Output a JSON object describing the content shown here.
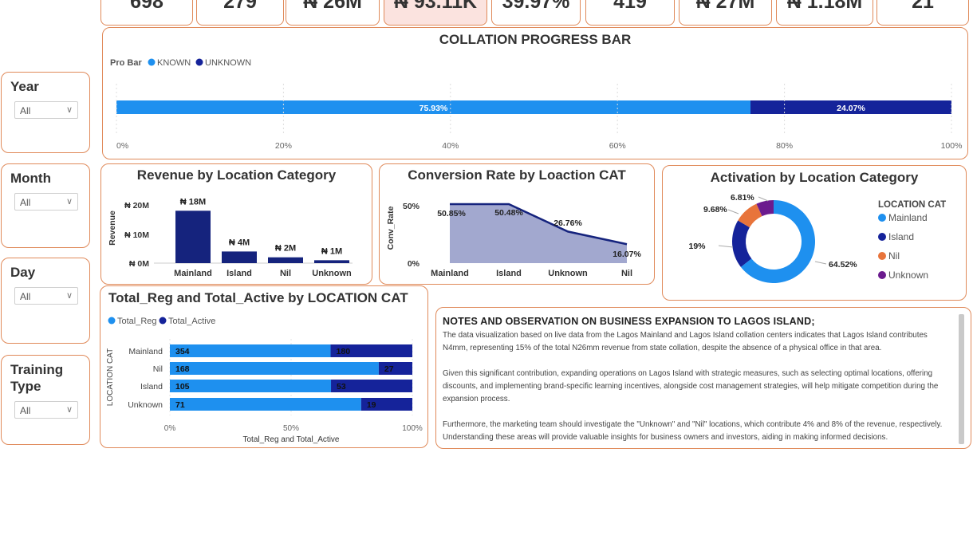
{
  "kpis": [
    "698",
    "279",
    "₦ 26M",
    "₦ 93.11K",
    "39.97%",
    "419",
    "₦ 27M",
    "₦ 1.18M",
    "21"
  ],
  "slicers": [
    {
      "title": "Year",
      "value": "All"
    },
    {
      "title": "Month",
      "value": "All"
    },
    {
      "title": "Day",
      "value": "All"
    },
    {
      "title": "Training Type",
      "value": "All"
    }
  ],
  "colors": {
    "known": "#1e90ef",
    "unknown": "#15239a",
    "nil": "#e8743b",
    "unknown_purple": "#6b1b8e",
    "border": "#e08a5a",
    "area": "#a2a8cf",
    "bar_navy": "#15237d"
  },
  "progress": {
    "title": "COLLATION PROGRESS BAR",
    "legend_title": "Pro Bar",
    "legend": [
      "KNOWN",
      "UNKNOWN"
    ],
    "ticks": [
      "0%",
      "20%",
      "40%",
      "60%",
      "80%",
      "100%"
    ],
    "chart_data": {
      "type": "bar",
      "orientation": "horizontal",
      "stacked": true,
      "series": [
        {
          "name": "KNOWN",
          "values": [
            75.93
          ],
          "label": "75.93%"
        },
        {
          "name": "UNKNOWN",
          "values": [
            24.07
          ],
          "label": "24.07%"
        }
      ],
      "xlim": [
        0,
        100
      ]
    }
  },
  "revenue": {
    "title": "Revenue by Location Category",
    "ylabel": "Revenue",
    "yticks": [
      "₦ 20M",
      "₦ 10M",
      "₦ 0M"
    ],
    "chart_data": {
      "type": "bar",
      "categories": [
        "Mainland",
        "Island",
        "Nil",
        "Unknown"
      ],
      "values": [
        18,
        4,
        2,
        1
      ],
      "labels": [
        "₦ 18M",
        "₦ 4M",
        "₦ 2M",
        "₦ 1M"
      ],
      "ylim": [
        0,
        20
      ]
    }
  },
  "conversion": {
    "title": "Conversion Rate by Loaction CAT",
    "ylabel": "Conv_Rate",
    "yticks": [
      "50%",
      "0%"
    ],
    "chart_data": {
      "type": "area",
      "categories": [
        "Mainland",
        "Island",
        "Unknown",
        "Nil"
      ],
      "values": [
        50.85,
        50.48,
        26.76,
        16.07
      ],
      "labels": [
        "50.85%",
        "50.48%",
        "26.76%",
        "16.07%"
      ],
      "ylim": [
        0,
        50
      ]
    }
  },
  "activation": {
    "title": "Activation by Location Category",
    "legend_title": "LOCATION CAT",
    "chart_data": {
      "type": "pie",
      "donut": true,
      "categories": [
        "Mainland",
        "Island",
        "Nil",
        "Unknown"
      ],
      "values": [
        64.52,
        19,
        9.68,
        6.81
      ],
      "labels": [
        "64.52%",
        "19%",
        "9.68%",
        "6.81%"
      ]
    }
  },
  "regactive": {
    "title": "Total_Reg and Total_Active by LOCATION CAT",
    "legend": [
      "Total_Reg",
      "Total_Active"
    ],
    "ylabel": "LOCATION CAT",
    "xlabel": "Total_Reg and Total_Active",
    "ticks": [
      "0%",
      "50%",
      "100%"
    ],
    "chart_data": {
      "type": "bar",
      "orientation": "horizontal",
      "stacked_percent": true,
      "categories": [
        "Mainland",
        "Nil",
        "Island",
        "Unknown"
      ],
      "series": [
        {
          "name": "Total_Reg",
          "values": [
            354,
            168,
            105,
            71
          ]
        },
        {
          "name": "Total_Active",
          "values": [
            180,
            27,
            53,
            19
          ]
        }
      ]
    }
  },
  "notes": {
    "title": "NOTES AND OBSERVATION ON BUSINESS EXPANSION TO LAGOS ISLAND;",
    "p1": "The data visualization based on live data from the Lagos Mainland and Lagos Island collation centers indicates that Lagos Island contributes N4mm, representing 15% of the total N26mm revenue from state collation, despite the absence of a physical office in that area.",
    "p2": "Given this significant contribution, expanding operations on Lagos Island with strategic measures, such as selecting optimal locations, offering discounts, and implementing brand-specific learning incentives, alongside cost management strategies, will help mitigate competition during the expansion process.",
    "p3": "Furthermore, the marketing team should investigate the \"Unknown\" and \"Nil\" locations, which contribute 4% and 8% of the revenue, respectively. Understanding these areas will provide valuable insights for business owners and investors, aiding in making informed decisions."
  }
}
